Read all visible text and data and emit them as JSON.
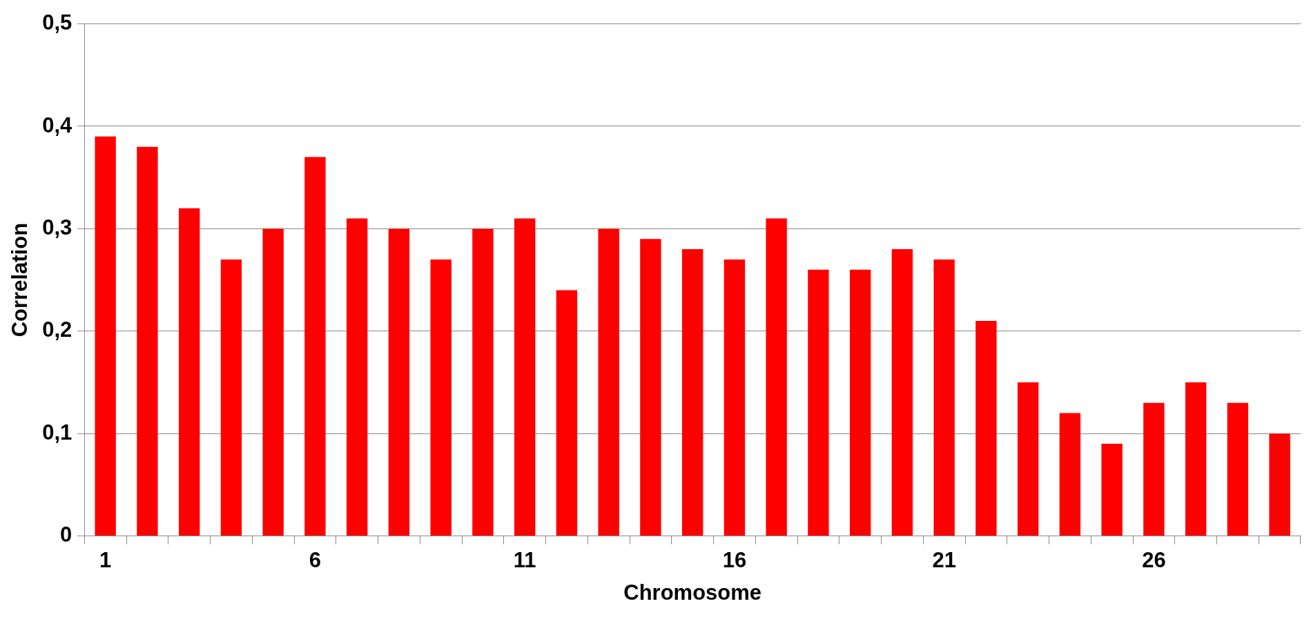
{
  "chart_data": {
    "type": "bar",
    "xlabel": "Chromosome",
    "ylabel": "Correlation",
    "categories": [
      "1",
      null,
      null,
      null,
      null,
      "6",
      null,
      null,
      null,
      null,
      "11",
      null,
      null,
      null,
      null,
      "16",
      null,
      null,
      null,
      null,
      "21",
      null,
      null,
      null,
      null,
      "26",
      null,
      null,
      null
    ],
    "values": [
      0.39,
      0.38,
      0.32,
      0.27,
      0.3,
      0.37,
      0.31,
      0.3,
      0.27,
      0.3,
      0.31,
      0.24,
      0.3,
      0.29,
      0.28,
      0.27,
      0.31,
      0.26,
      0.26,
      0.28,
      0.27,
      0.21,
      0.15,
      0.12,
      0.09,
      0.13,
      0.15,
      0.13,
      0.1
    ],
    "color": "#ff0000",
    "ylim": [
      0,
      0.5
    ],
    "yticks": [
      0,
      {
        "value": 0.1,
        "label": "0,1"
      },
      {
        "value": 0.2,
        "label": "0,2"
      },
      {
        "value": 0.3,
        "label": "0,3"
      },
      {
        "value": 0.4,
        "label": "0,4"
      },
      {
        "value": 0.5,
        "label": "0,5"
      }
    ],
    "grid": "y",
    "legend": false
  }
}
